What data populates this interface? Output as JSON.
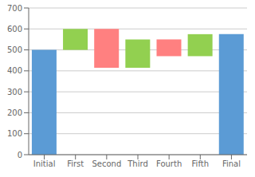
{
  "chart_data": {
    "type": "bar",
    "categories": [
      "Initial",
      "First",
      "Second",
      "Third",
      "Fourth",
      "Fifth",
      "Final"
    ],
    "bottoms": [
      0,
      500,
      415,
      415,
      470,
      470,
      0
    ],
    "tops": [
      500,
      600,
      600,
      550,
      550,
      575,
      575
    ],
    "colors": [
      "#5B9BD5",
      "#92D050",
      "#FF8080",
      "#92D050",
      "#FF8080",
      "#92D050",
      "#5B9BD5"
    ],
    "ylim": [
      0,
      700
    ],
    "yticks": [
      0,
      100,
      200,
      300,
      400,
      500,
      600,
      700
    ],
    "grid": true
  }
}
